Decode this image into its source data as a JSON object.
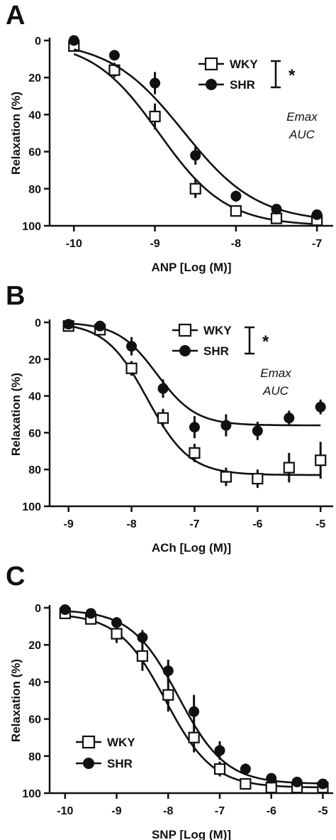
{
  "chart_data": [
    {
      "type": "scatter",
      "panel_letter": "A",
      "xlabel": "ANP [Log (M)]",
      "ylabel": "Relaxation (%)",
      "xlim": [
        -10.3,
        -6.8
      ],
      "ylim": [
        0,
        100
      ],
      "y_inverted": true,
      "xticks": [
        -10,
        -9,
        -8,
        -7
      ],
      "yticks": [
        0,
        20,
        40,
        60,
        80,
        100
      ],
      "legend_position": "top-right",
      "significance": "*",
      "notes": [
        "Emax",
        "AUC"
      ],
      "series": [
        {
          "name": "WKY",
          "marker": "open-square",
          "x": [
            -10,
            -9.5,
            -9,
            -8.5,
            -8,
            -7.5,
            -7
          ],
          "y": [
            3,
            16,
            41,
            80,
            92,
            96,
            97
          ],
          "err": [
            2,
            4,
            7,
            5,
            3,
            2,
            2
          ],
          "fit": {
            "bottom": 0,
            "top": 100,
            "logec50": -8.95,
            "hill": 1.05
          }
        },
        {
          "name": "SHR",
          "marker": "filled-circle",
          "x": [
            -10,
            -9.5,
            -9,
            -8.5,
            -8,
            -7.5,
            -7
          ],
          "y": [
            0,
            8,
            23,
            62,
            84,
            91,
            94
          ],
          "err": [
            1,
            2,
            6,
            5,
            3,
            2,
            2
          ],
          "fit": {
            "bottom": 0,
            "top": 98,
            "logec50": -8.65,
            "hill": 0.95
          }
        }
      ]
    },
    {
      "type": "scatter",
      "panel_letter": "B",
      "xlabel": "ACh  [Log (M)]",
      "ylabel": "Relaxation (%)",
      "xlim": [
        -9.3,
        -4.8
      ],
      "ylim": [
        0,
        100
      ],
      "y_inverted": true,
      "xticks": [
        -9,
        -8,
        -7,
        -6,
        -5
      ],
      "yticks": [
        0,
        20,
        40,
        60,
        80,
        100
      ],
      "legend_position": "top-right",
      "significance": "*",
      "notes": [
        "Emax",
        "AUC"
      ],
      "series": [
        {
          "name": "WKY",
          "marker": "open-square",
          "x": [
            -9,
            -8.5,
            -8,
            -7.5,
            -7,
            -6.5,
            -6,
            -5.5,
            -5
          ],
          "y": [
            2,
            4,
            25,
            52,
            71,
            84,
            85,
            79,
            75
          ],
          "err": [
            2,
            2,
            4,
            5,
            5,
            5,
            5,
            8,
            10
          ],
          "fit": {
            "bottom": 0,
            "top": 83,
            "logec50": -7.75,
            "hill": 1.3
          }
        },
        {
          "name": "SHR",
          "marker": "filled-circle",
          "x": [
            -9,
            -8.5,
            -8,
            -7.5,
            -7,
            -6.5,
            -6,
            -5.5,
            -5
          ],
          "y": [
            1,
            2,
            13,
            36,
            57,
            56,
            59,
            52,
            46
          ],
          "err": [
            1,
            2,
            5,
            5,
            6,
            6,
            5,
            4,
            4
          ],
          "fit": {
            "bottom": 0,
            "top": 56,
            "logec50": -7.6,
            "hill": 1.4
          }
        }
      ]
    },
    {
      "type": "scatter",
      "panel_letter": "C",
      "xlabel": "SNP [Log (M)]",
      "ylabel": "Relaxation (%)",
      "xlim": [
        -10.3,
        -4.8
      ],
      "ylim": [
        0,
        100
      ],
      "y_inverted": true,
      "xticks": [
        -10,
        -9,
        -8,
        -7,
        -6,
        -5
      ],
      "yticks": [
        0,
        20,
        40,
        60,
        80,
        100
      ],
      "legend_position": "bottom-left",
      "significance": "",
      "notes": [],
      "series": [
        {
          "name": "WKY",
          "marker": "open-square",
          "x": [
            -10,
            -9.5,
            -9,
            -8.5,
            -8,
            -7.5,
            -7,
            -6.5,
            -6,
            -5.5,
            -5
          ],
          "y": [
            3,
            6,
            14,
            26,
            47,
            70,
            87,
            95,
            97,
            97,
            97
          ],
          "err": [
            2,
            3,
            5,
            8,
            9,
            8,
            4,
            2,
            2,
            2,
            2
          ],
          "fit": {
            "bottom": 3,
            "top": 97,
            "logec50": -8.05,
            "hill": 0.95
          }
        },
        {
          "name": "SHR",
          "marker": "filled-circle",
          "x": [
            -10,
            -9.5,
            -9,
            -8.5,
            -8,
            -7.5,
            -7,
            -6.5,
            -6,
            -5.5,
            -5
          ],
          "y": [
            1,
            3,
            8,
            16,
            34,
            56,
            77,
            87,
            92,
            94,
            95
          ],
          "err": [
            1,
            2,
            3,
            4,
            6,
            9,
            5,
            3,
            2,
            2,
            2
          ],
          "fit": {
            "bottom": 1,
            "top": 95,
            "logec50": -7.8,
            "hill": 0.95
          }
        }
      ]
    }
  ]
}
